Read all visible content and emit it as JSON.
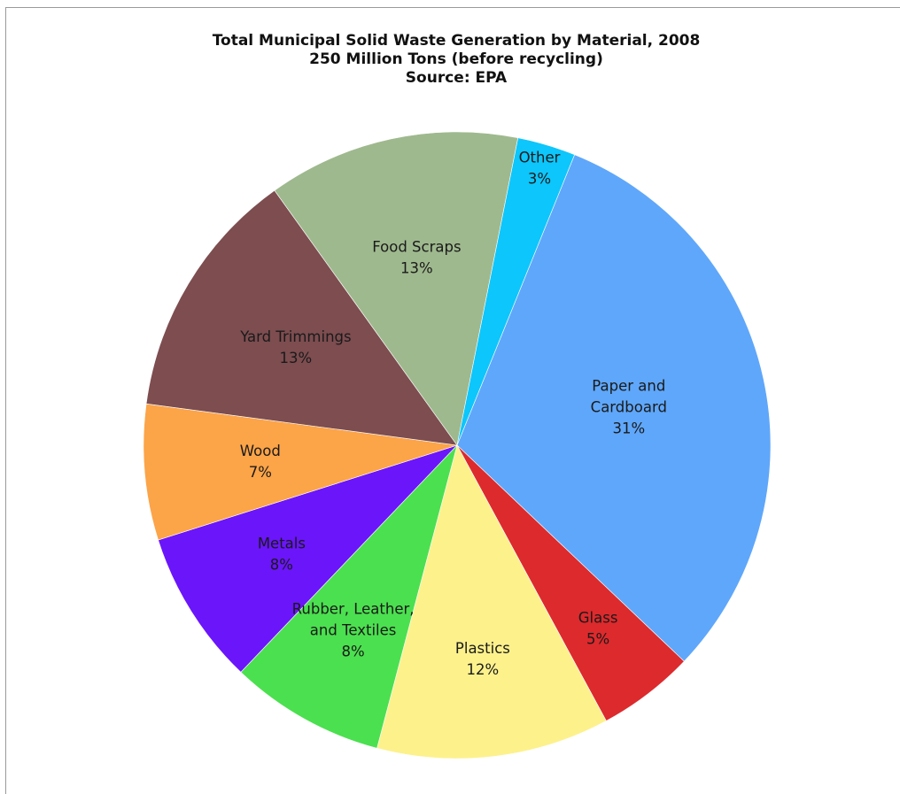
{
  "chart_data": {
    "type": "pie",
    "title": "Total Municipal Solid Waste Generation by Material, 2008",
    "subtitle": "250 Million Tons (before recycling)",
    "source": "Source: EPA",
    "slices": [
      {
        "label_lines": [
          "Paper and",
          "Cardboard"
        ],
        "value": 31,
        "value_label": "31%",
        "color": "#5fa7fa"
      },
      {
        "label_lines": [
          "Glass"
        ],
        "value": 5,
        "value_label": "5%",
        "color": "#dd2a2d"
      },
      {
        "label_lines": [
          "Plastics"
        ],
        "value": 12,
        "value_label": "12%",
        "color": "#fdf18c"
      },
      {
        "label_lines": [
          "Rubber, Leather,",
          "and Textiles"
        ],
        "value": 8,
        "value_label": "8%",
        "color": "#4be04f"
      },
      {
        "label_lines": [
          "Metals"
        ],
        "value": 8,
        "value_label": "8%",
        "color": "#6b15fb"
      },
      {
        "label_lines": [
          "Wood"
        ],
        "value": 7,
        "value_label": "7%",
        "color": "#fca448"
      },
      {
        "label_lines": [
          "Yard Trimmings"
        ],
        "value": 13,
        "value_label": "13%",
        "color": "#7d4d50"
      },
      {
        "label_lines": [
          "Food Scraps"
        ],
        "value": 13,
        "value_label": "13%",
        "color": "#9fb98e"
      },
      {
        "label_lines": [
          "Other"
        ],
        "value": 3,
        "value_label": "3%",
        "color": "#0dc6fb"
      }
    ],
    "legend": "none"
  }
}
